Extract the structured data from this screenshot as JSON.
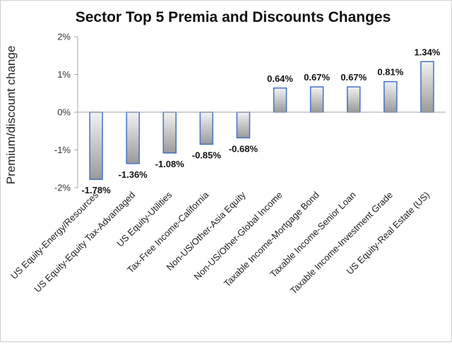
{
  "chart_data": {
    "type": "bar",
    "title": "Sector Top 5 Premia and Discounts Changes",
    "xlabel": "",
    "ylabel": "Premium/discount change",
    "ylim": [
      -2,
      2
    ],
    "yticks": [
      "2%",
      "1%",
      "0%",
      "-1%",
      "-2%"
    ],
    "ytick_values": [
      2,
      1,
      0,
      -1,
      -2
    ],
    "categories": [
      "US Equity-Energy/Resources",
      "US Equity-Equity Tax-Advantaged",
      "US Equity-Utilities",
      "Tax-Free Income-California",
      "Non-US/Other-Asia Equity",
      "Non-US/Other-Global Income",
      "Taxable Income-Mortgage Bond",
      "Taxable Income-Senior Loan",
      "Taxable Income-Investment Grade",
      "US Equity-Real Estate (US)"
    ],
    "values": [
      -1.78,
      -1.36,
      -1.08,
      -0.85,
      -0.68,
      0.64,
      0.67,
      0.67,
      0.81,
      1.34
    ],
    "data_labels": [
      "-1.78%",
      "-1.36%",
      "-1.08%",
      "-0.85%",
      "-0.68%",
      "0.64%",
      "0.67%",
      "0.67%",
      "0.81%",
      "1.34%"
    ],
    "grid": false,
    "legend": "none",
    "colors": {
      "bar_border": "#4472c4",
      "bar_fill_light": "#f2f2f2",
      "bar_fill_dark": "#9a9a9a",
      "axis": "#a6a6a6"
    }
  }
}
